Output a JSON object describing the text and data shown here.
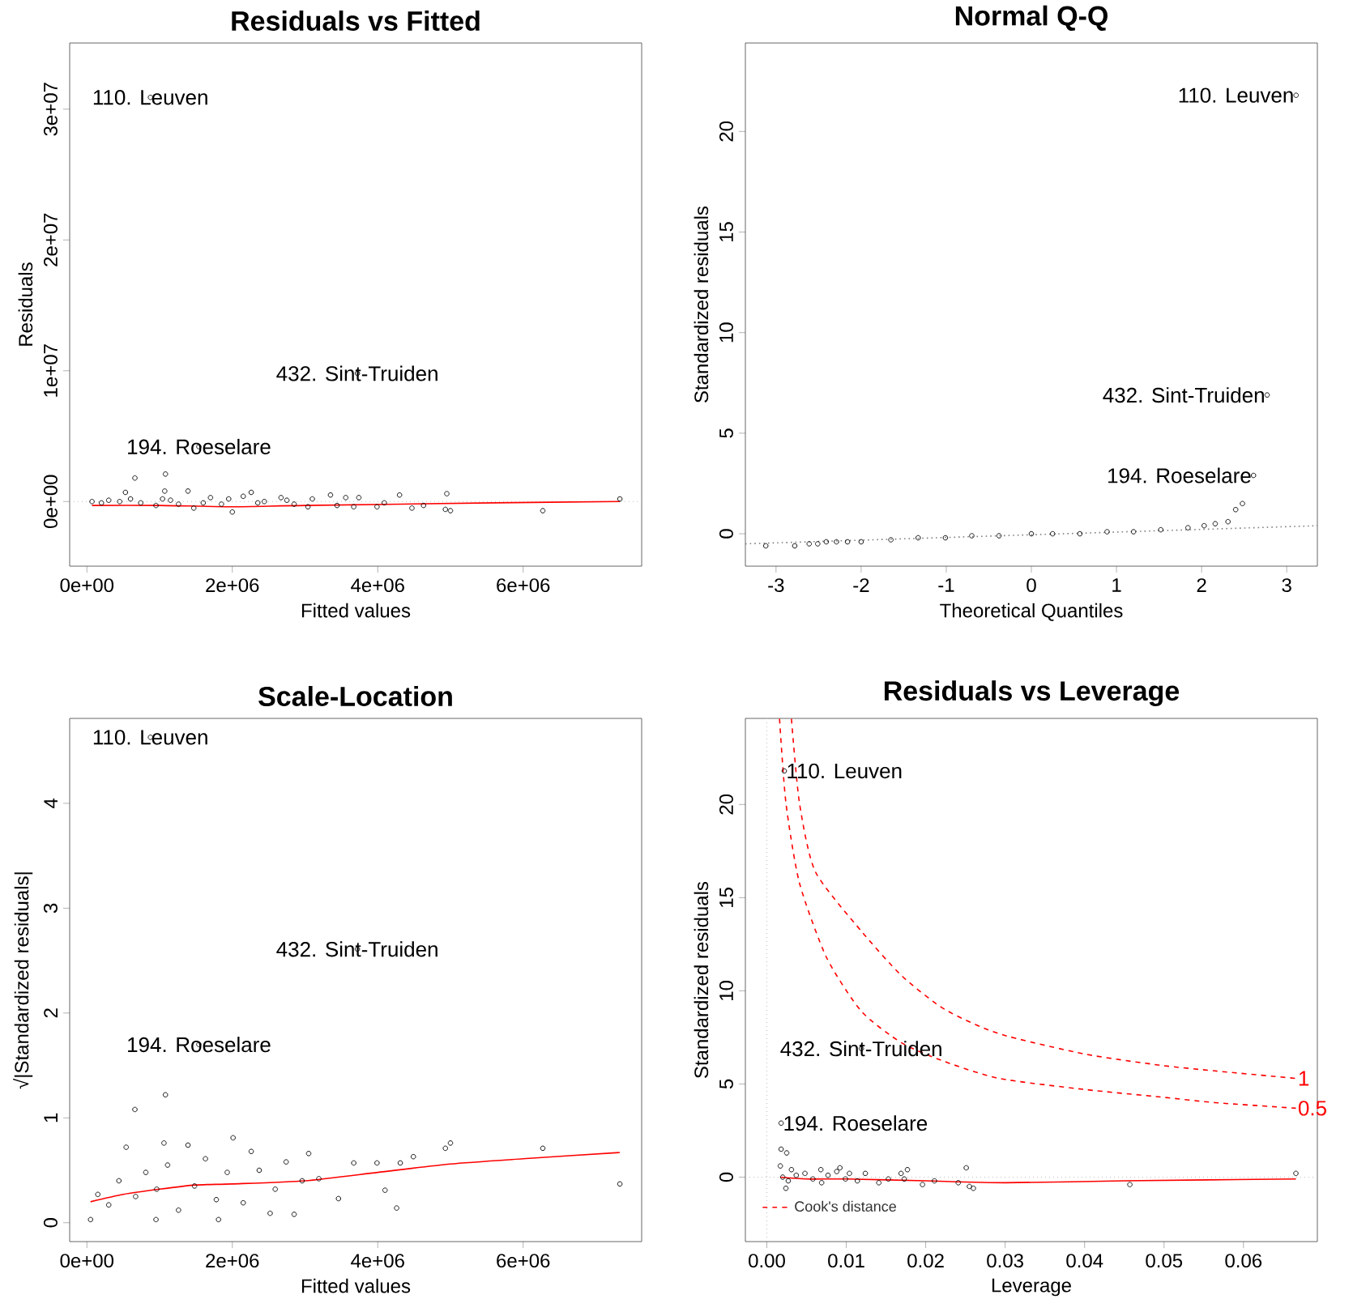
{
  "chart_data": [
    {
      "type": "scatter",
      "title": "Residuals vs Fitted",
      "xlabel": "Fitted values",
      "ylabel": "Residuals",
      "xlim": [
        -237000,
        7630000
      ],
      "ylim": [
        -4940000,
        35060000
      ],
      "xticks": [
        {
          "value": 0,
          "label": "0e+00"
        },
        {
          "value": 2000000,
          "label": "2e+06"
        },
        {
          "value": 4000000,
          "label": "4e+06"
        },
        {
          "value": 6000000,
          "label": "6e+06"
        }
      ],
      "yticks": [
        {
          "value": 0,
          "label": "0e+00"
        },
        {
          "value": 10000000,
          "label": "1e+07"
        },
        {
          "value": 20000000,
          "label": "2e+07"
        },
        {
          "value": 30000000,
          "label": "3e+07"
        }
      ],
      "series": [
        {
          "color": "#000000",
          "marker": "circle",
          "x": [
            874000,
            3720000,
            1540000,
            660000,
            1080000,
            1390000,
            1070000,
            530000,
            2260000,
            4950000,
            4300000,
            3350000,
            7330000,
            6270000,
            5000000,
            4930000,
            4470000,
            3990000,
            3670000,
            3440000,
            3040000,
            2000000,
            1470000,
            70000,
            300000,
            740000,
            1040000,
            1260000,
            1700000,
            1850000,
            2150000,
            2440000,
            2670000,
            2850000,
            3100000,
            3560000,
            3740000,
            4630000,
            4090000,
            200000,
            450000,
            600000,
            950000,
            1150000,
            1600000,
            1950000,
            2350000,
            2750000
          ],
          "values": [
            30900000,
            9800000,
            4200000,
            1800000,
            2100000,
            800000,
            800000,
            700000,
            700000,
            600000,
            500000,
            500000,
            200000,
            -700000,
            -700000,
            -600000,
            -500000,
            -400000,
            -400000,
            -300000,
            -400000,
            -800000,
            -500000,
            0,
            100000,
            -100000,
            200000,
            -200000,
            300000,
            -200000,
            400000,
            0,
            300000,
            -200000,
            200000,
            300000,
            300000,
            -300000,
            -100000,
            -100000,
            0,
            200000,
            -300000,
            100000,
            -100000,
            200000,
            -100000,
            100000
          ]
        },
        {
          "type": "line",
          "color": "#ff0000",
          "x": [
            70000,
            1000000,
            2000000,
            3000000,
            5600000,
            7330000
          ],
          "values": [
            -300000,
            -300000,
            -400000,
            -300000,
            -100000,
            0
          ]
        }
      ],
      "ref_lines": [
        {
          "axis": "y",
          "value": 0,
          "color": "#bebebe",
          "line_style": "dotted"
        }
      ],
      "annotations": [
        {
          "text": "110. Leuven",
          "x": 874000,
          "y": 30900000
        },
        {
          "text": "432. Sint-Truiden",
          "x": 3720000,
          "y": 9800000
        },
        {
          "text": "194. Roeselare",
          "x": 1540000,
          "y": 4200000
        }
      ]
    },
    {
      "type": "scatter",
      "title": "Normal Q-Q",
      "xlabel": "Theoretical Quantiles",
      "ylabel": "Standardized residuals",
      "xlim": [
        -3.36,
        3.36
      ],
      "ylim": [
        -1.61,
        24.4
      ],
      "xticks": [
        -3,
        -2,
        -1,
        0,
        1,
        2,
        3
      ],
      "yticks": [
        0,
        5,
        10,
        15,
        20
      ],
      "series": [
        {
          "color": "#000000",
          "marker": "circle",
          "x": [
            3.11,
            2.77,
            2.61,
            2.48,
            2.4,
            2.31,
            2.16,
            2.03,
            1.84,
            1.52,
            1.2,
            0.89,
            0.57,
            0.25,
            0,
            -0.38,
            -0.7,
            -1.01,
            -1.33,
            -1.65,
            -2.0,
            -2.16,
            -2.29,
            -2.41,
            -2.51,
            -2.61,
            -2.78,
            -3.12
          ],
          "values": [
            21.8,
            6.9,
            2.9,
            1.5,
            1.2,
            0.6,
            0.5,
            0.4,
            0.3,
            0.2,
            0.1,
            0.1,
            0.0,
            0.0,
            0.0,
            -0.1,
            -0.1,
            -0.2,
            -0.2,
            -0.3,
            -0.4,
            -0.4,
            -0.4,
            -0.4,
            -0.5,
            -0.5,
            -0.6,
            -0.6
          ]
        },
        {
          "type": "line",
          "color": "#808080",
          "line_style": "dotted",
          "x": [
            -3.36,
            3.36
          ],
          "values": [
            -0.5,
            0.4
          ]
        }
      ],
      "annotations": [
        {
          "text": "110. Leuven",
          "x": 3.11,
          "y": 21.8
        },
        {
          "text": "432. Sint-Truiden",
          "x": 2.77,
          "y": 6.9
        },
        {
          "text": "194. Roeselare",
          "x": 2.61,
          "y": 2.9
        }
      ]
    },
    {
      "type": "scatter",
      "title": "Scale-Location",
      "xlabel": "Fitted values",
      "ylabel": "√|Standardized residuals|",
      "xlim": [
        -237000,
        7630000
      ],
      "ylim": [
        -0.18,
        4.81
      ],
      "xticks": [
        {
          "value": 0,
          "label": "0e+00"
        },
        {
          "value": 2000000,
          "label": "2e+06"
        },
        {
          "value": 4000000,
          "label": "4e+06"
        },
        {
          "value": 6000000,
          "label": "6e+06"
        }
      ],
      "yticks": [
        0,
        1,
        2,
        3,
        4
      ],
      "series": [
        {
          "color": "#000000",
          "marker": "circle",
          "x": [
            874000,
            3720000,
            1540000,
            1080000,
            660000,
            540000,
            1060000,
            1390000,
            2010000,
            2260000,
            3050000,
            5000000,
            4930000,
            6270000,
            7330000,
            4490000,
            4310000,
            3990000,
            4260000,
            4100000,
            3670000,
            3460000,
            2850000,
            2520000,
            50000,
            950000,
            1810000,
            150000,
            300000,
            440000,
            670000,
            810000,
            960000,
            1110000,
            1260000,
            1480000,
            1630000,
            1780000,
            1930000,
            2150000,
            2370000,
            2590000,
            2740000,
            2960000,
            3190000
          ],
          "values": [
            4.63,
            2.61,
            1.7,
            1.22,
            1.08,
            0.72,
            0.76,
            0.74,
            0.81,
            0.68,
            0.66,
            0.76,
            0.71,
            0.71,
            0.37,
            0.63,
            0.57,
            0.57,
            0.14,
            0.31,
            0.57,
            0.23,
            0.08,
            0.09,
            0.03,
            0.03,
            0.03,
            0.27,
            0.17,
            0.4,
            0.25,
            0.48,
            0.32,
            0.55,
            0.12,
            0.35,
            0.61,
            0.22,
            0.48,
            0.19,
            0.5,
            0.32,
            0.58,
            0.4,
            0.42
          ]
        },
        {
          "type": "line",
          "color": "#ff0000",
          "x": [
            50000,
            500000,
            1000000,
            1500000,
            2000000,
            3000000,
            4000000,
            5000000,
            6000000,
            7330000
          ],
          "values": [
            0.2,
            0.27,
            0.32,
            0.36,
            0.37,
            0.4,
            0.48,
            0.56,
            0.61,
            0.67
          ]
        }
      ],
      "annotations": [
        {
          "text": "110. Leuven",
          "x": 874000,
          "y": 4.63
        },
        {
          "text": "432. Sint-Truiden",
          "x": 3720000,
          "y": 2.61
        },
        {
          "text": "194. Roeselare",
          "x": 1540000,
          "y": 1.7
        }
      ]
    },
    {
      "type": "scatter",
      "title": "Residuals vs Leverage",
      "xlabel": "Leverage",
      "ylabel": "Standardized residuals",
      "xlim": [
        -0.0027,
        0.0693
      ],
      "ylim": [
        -3.46,
        24.62
      ],
      "xticks": [
        {
          "value": 0,
          "label": "0.00"
        },
        0.01,
        0.02,
        0.03,
        0.04,
        0.05,
        0.06
      ],
      "yticks": [
        0,
        5,
        10,
        15,
        20
      ],
      "legend": "bottom left",
      "series": [
        {
          "color": "#000000",
          "marker": "circle",
          "x": [
            0.0022,
            0.0119,
            0.0018,
            0.0018,
            0.0025,
            0.0017,
            0.002,
            0.0027,
            0.0024,
            0.0031,
            0.0037,
            0.0048,
            0.0058,
            0.0068,
            0.0069,
            0.0077,
            0.0088,
            0.0092,
            0.0099,
            0.0104,
            0.0114,
            0.0124,
            0.0141,
            0.0153,
            0.0169,
            0.0173,
            0.0177,
            0.0196,
            0.0211,
            0.0241,
            0.0251,
            0.0255,
            0.026,
            0.0457,
            0.0666
          ],
          "values": [
            21.8,
            6.9,
            2.9,
            1.5,
            1.3,
            0.6,
            0.0,
            -0.2,
            -0.6,
            0.4,
            0.1,
            0.2,
            -0.1,
            0.4,
            -0.3,
            0.1,
            0.3,
            0.5,
            -0.1,
            0.2,
            -0.2,
            0.2,
            -0.3,
            -0.1,
            0.2,
            -0.1,
            0.4,
            -0.4,
            -0.2,
            -0.3,
            0.5,
            -0.5,
            -0.6,
            -0.4,
            0.2
          ]
        },
        {
          "type": "line",
          "color": "#ff0000",
          "x": [
            0.0017,
            0.005,
            0.01,
            0.02,
            0.03,
            0.045,
            0.0666
          ],
          "values": [
            0,
            -0.1,
            -0.1,
            -0.2,
            -0.3,
            -0.2,
            -0.1
          ]
        },
        {
          "type": "line",
          "name": "Cook's distance",
          "color": "#ff0000",
          "line_style": "dashed",
          "x": [
            0.0031,
            0.0041,
            0.0061,
            0.0119,
            0.017,
            0.0224,
            0.0292,
            0.0401,
            0.0496,
            0.0564,
            0.0666
          ],
          "values": [
            24.6,
            20.1,
            16.4,
            13.2,
            10.8,
            9.0,
            7.7,
            6.6,
            6.0,
            5.7,
            5.3
          ]
        },
        {
          "type": "line",
          "color": "#ff0000",
          "line_style": "dashed",
          "x": [
            0.0016,
            0.0024,
            0.0041,
            0.0075,
            0.0119,
            0.017,
            0.0224,
            0.0292,
            0.0401,
            0.0496,
            0.0564,
            0.0666
          ],
          "values": [
            24.6,
            20.1,
            15.8,
            11.8,
            8.9,
            7.2,
            6.2,
            5.3,
            4.7,
            4.3,
            4.0,
            3.7
          ]
        }
      ],
      "ref_lines": [
        {
          "axis": "y",
          "value": 0,
          "color": "#bebebe",
          "line_style": "dotted"
        },
        {
          "axis": "x",
          "value": 0,
          "color": "#bebebe",
          "line_style": "dotted"
        }
      ],
      "annotations": [
        {
          "text": "110. Leuven",
          "x": 0.0022,
          "y": 21.8
        },
        {
          "text": "432. Sint-Truiden",
          "x": 0.0119,
          "y": 6.9
        },
        {
          "text": "194. Roeselare",
          "x": 0.0018,
          "y": 2.9
        },
        {
          "text": "1",
          "x": 0.0666,
          "y": 5.3
        },
        {
          "text": "0.5",
          "x": 0.0666,
          "y": 3.7
        }
      ]
    }
  ]
}
